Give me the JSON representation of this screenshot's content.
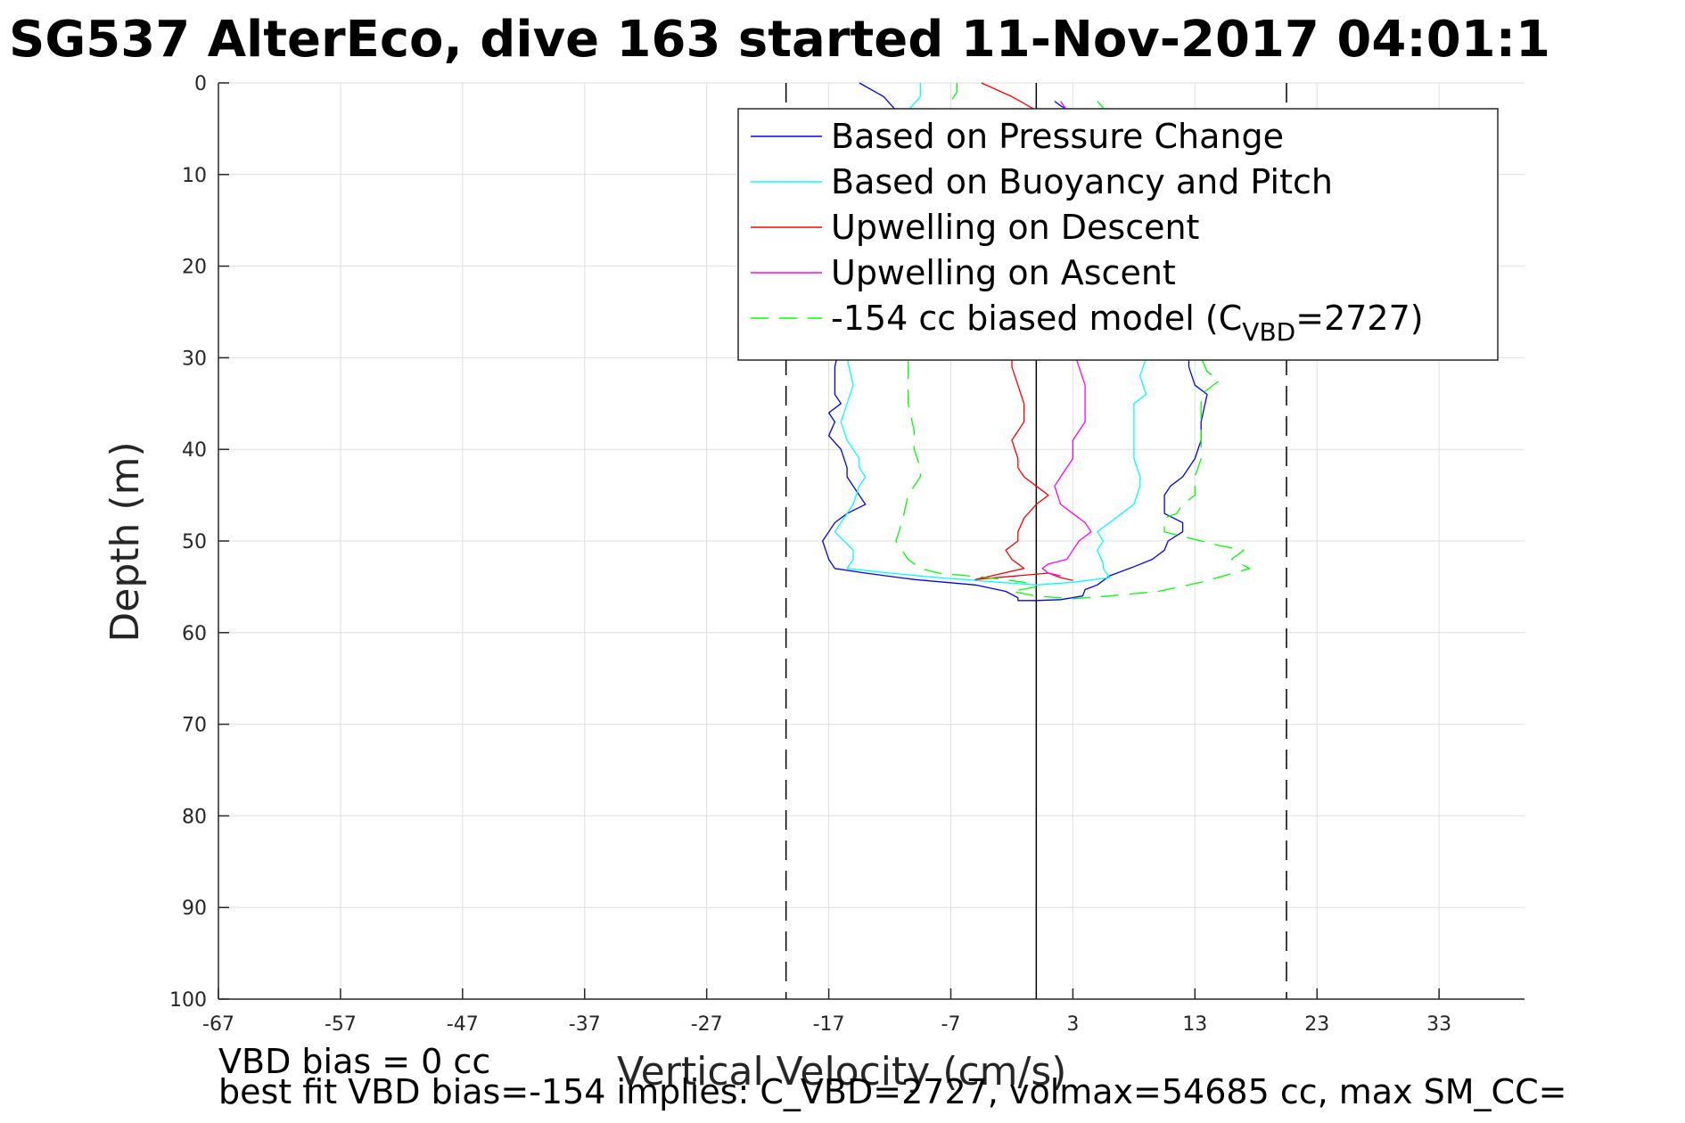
{
  "chart_data": {
    "type": "line",
    "title": "SG537 AlterEco, dive 163 started 11-Nov-2017 04:01:1",
    "xlabel": "Vertical Velocity (cm/s)",
    "ylabel": "Depth (m)",
    "xlim": [
      -67,
      40
    ],
    "ylim": [
      0,
      100
    ],
    "y_reversed": true,
    "grid": true,
    "legend_position": "top-right",
    "x_ticks": [
      "-67",
      "-57",
      "-47",
      "-37",
      "-27",
      "-17",
      "-7",
      "3",
      "13",
      "23",
      "33"
    ],
    "y_ticks": [
      "0",
      "10",
      "20",
      "30",
      "40",
      "50",
      "60",
      "70",
      "80",
      "90",
      "100"
    ],
    "reference_lines": [
      {
        "x": -20.5,
        "style": "dashed",
        "color": "#000000"
      },
      {
        "x": 0,
        "style": "solid",
        "color": "#000000"
      },
      {
        "x": 20.5,
        "style": "dashed",
        "color": "#000000"
      }
    ],
    "legend": [
      {
        "label": "Based on Pressure Change",
        "color": "#0000ff",
        "dash": "solid"
      },
      {
        "label": "Based on Buoyancy and Pitch",
        "color": "#00ffff",
        "dash": "solid"
      },
      {
        "label": "Upwelling on Descent",
        "color": "#ff0000",
        "dash": "solid"
      },
      {
        "label": "Upwelling on Ascent",
        "color": "#ff00ff",
        "dash": "solid"
      },
      {
        "label": "-154 cc biased model (C",
        "sub": "VBD",
        "tail": "=2727)",
        "color": "#00ff00",
        "dash": "dashed"
      }
    ],
    "series": [
      {
        "color": "#0000ff",
        "dash": "solid",
        "points": [
          [
            -14.5,
            0
          ],
          [
            -12.5,
            1.5
          ],
          [
            -11.5,
            3
          ],
          [
            -11,
            5
          ],
          [
            -11,
            12
          ],
          [
            -12.5,
            14
          ],
          [
            -14.5,
            16
          ],
          [
            -15,
            20
          ],
          [
            -15,
            24
          ],
          [
            -16,
            28
          ],
          [
            -16.5,
            31
          ],
          [
            -16.5,
            34
          ],
          [
            -16,
            35
          ],
          [
            -17,
            36
          ],
          [
            -16.5,
            37
          ],
          [
            -17,
            38.5
          ],
          [
            -16,
            40
          ],
          [
            -15.5,
            42
          ],
          [
            -15.5,
            43
          ],
          [
            -14.5,
            45
          ],
          [
            -14,
            46
          ],
          [
            -15.5,
            47
          ],
          [
            -16.5,
            48
          ],
          [
            -17,
            49
          ],
          [
            -17.5,
            50
          ],
          [
            -17,
            52
          ],
          [
            -16.5,
            53
          ],
          [
            -14,
            53.5
          ],
          [
            -10,
            54.2
          ],
          [
            -5,
            54.8
          ],
          [
            -2.5,
            55.5
          ],
          [
            -1.5,
            56.2
          ],
          [
            -1.5,
            56.5
          ],
          [
            0,
            56.5
          ],
          [
            2,
            56.4
          ],
          [
            3.8,
            56
          ],
          [
            4,
            55.3
          ],
          [
            5,
            54.8
          ],
          [
            6,
            53.8
          ],
          [
            8,
            52.8
          ],
          [
            9.5,
            52
          ],
          [
            10.5,
            51
          ],
          [
            10.8,
            50
          ],
          [
            12,
            49
          ],
          [
            12,
            48
          ],
          [
            10.5,
            47
          ],
          [
            10.5,
            45
          ],
          [
            11,
            44
          ],
          [
            12,
            43
          ],
          [
            13,
            41
          ],
          [
            13.5,
            39
          ],
          [
            13.5,
            37
          ],
          [
            14,
            34
          ],
          [
            13,
            33
          ],
          [
            12.5,
            31
          ],
          [
            12.5,
            28
          ],
          [
            12,
            24
          ],
          [
            11.5,
            20
          ],
          [
            10,
            15
          ],
          [
            8,
            11
          ],
          [
            7,
            8
          ],
          [
            4,
            4
          ],
          [
            2,
            2.5
          ],
          [
            1.5,
            2
          ]
        ]
      },
      {
        "color": "#00ffff",
        "dash": "solid",
        "points": [
          [
            -9.5,
            0
          ],
          [
            -9.5,
            1.5
          ],
          [
            -10.5,
            3
          ],
          [
            -11,
            6
          ],
          [
            -11.5,
            10
          ],
          [
            -13,
            13
          ],
          [
            -15,
            20
          ],
          [
            -15,
            25
          ],
          [
            -15.5,
            30
          ],
          [
            -15,
            33
          ],
          [
            -15.5,
            35
          ],
          [
            -16,
            37
          ],
          [
            -15.5,
            39
          ],
          [
            -14.5,
            41
          ],
          [
            -14.5,
            42
          ],
          [
            -14,
            43
          ],
          [
            -14.5,
            44
          ],
          [
            -15,
            46
          ],
          [
            -16,
            48
          ],
          [
            -16.5,
            49
          ],
          [
            -15,
            51
          ],
          [
            -15,
            52
          ],
          [
            -15.5,
            53
          ],
          [
            -12,
            53.5
          ],
          [
            -8,
            54
          ],
          [
            -3,
            54.5
          ],
          [
            0,
            54.8
          ],
          [
            3,
            54.5
          ],
          [
            6,
            54
          ],
          [
            5.5,
            53
          ],
          [
            5.5,
            52.5
          ],
          [
            5,
            51
          ],
          [
            5.5,
            50
          ],
          [
            5,
            49
          ],
          [
            6,
            48
          ],
          [
            7,
            47
          ],
          [
            8,
            46
          ],
          [
            8.5,
            44
          ],
          [
            8.5,
            43
          ],
          [
            8,
            41
          ],
          [
            8,
            37
          ],
          [
            8,
            35
          ],
          [
            9,
            34
          ],
          [
            8.5,
            32
          ],
          [
            9,
            30
          ],
          [
            8,
            26
          ],
          [
            7,
            20
          ],
          [
            6,
            15
          ],
          [
            5,
            10
          ],
          [
            4,
            6
          ],
          [
            3.5,
            3
          ]
        ]
      },
      {
        "color": "#ff0000",
        "dash": "solid",
        "points": [
          [
            -4.5,
            0
          ],
          [
            -2,
            1.5
          ],
          [
            0,
            3
          ],
          [
            -1,
            8
          ],
          [
            -1.5,
            15
          ],
          [
            -1.5,
            20
          ],
          [
            -1.5,
            25
          ],
          [
            -2,
            28
          ],
          [
            -2,
            31
          ],
          [
            -1.5,
            33
          ],
          [
            -1,
            35
          ],
          [
            -1,
            37
          ],
          [
            -1.5,
            38
          ],
          [
            -2,
            39
          ],
          [
            -1.5,
            41
          ],
          [
            -1.5,
            42
          ],
          [
            -1,
            43
          ],
          [
            0,
            44
          ],
          [
            1,
            45
          ],
          [
            0,
            46
          ],
          [
            -1,
            47.5
          ],
          [
            -1.5,
            49
          ],
          [
            -1.5,
            50
          ],
          [
            -2.5,
            51
          ],
          [
            -2,
            52
          ],
          [
            -1,
            53
          ],
          [
            -5,
            54.2
          ],
          [
            1,
            53.5
          ],
          [
            2,
            54
          ],
          [
            3,
            54.3
          ]
        ]
      },
      {
        "color": "#ff00ff",
        "dash": "solid",
        "points": [
          [
            2,
            2
          ],
          [
            3,
            4
          ],
          [
            4,
            6
          ],
          [
            4,
            10
          ],
          [
            4,
            15
          ],
          [
            3,
            20
          ],
          [
            3,
            25
          ],
          [
            3,
            29
          ],
          [
            3.5,
            31
          ],
          [
            4,
            33
          ],
          [
            4,
            35
          ],
          [
            4,
            37
          ],
          [
            3,
            39
          ],
          [
            3,
            41
          ],
          [
            2,
            43
          ],
          [
            1.5,
            44
          ],
          [
            2,
            46
          ],
          [
            3,
            47
          ],
          [
            4,
            48
          ],
          [
            4.5,
            49
          ],
          [
            3.5,
            50
          ],
          [
            3,
            51
          ],
          [
            2.5,
            52
          ],
          [
            1,
            52.5
          ],
          [
            0.5,
            53
          ],
          [
            1,
            53.5
          ],
          [
            2,
            53.8
          ]
        ]
      },
      {
        "color": "#00ff00",
        "dash": "dashed",
        "points": [
          [
            -6.5,
            0
          ],
          [
            -6.5,
            1
          ],
          [
            -7,
            2
          ],
          [
            -7,
            5
          ],
          [
            -8,
            10
          ],
          [
            -9,
            15
          ],
          [
            -10,
            20
          ],
          [
            -10.5,
            25
          ],
          [
            -10.5,
            31
          ],
          [
            -10.5,
            35
          ],
          [
            -10,
            38
          ],
          [
            -10,
            40
          ],
          [
            -9.5,
            42
          ],
          [
            -9.5,
            43
          ],
          [
            -10.5,
            45
          ],
          [
            -11,
            48
          ],
          [
            -11.5,
            50
          ],
          [
            -10.5,
            52
          ],
          [
            -9.5,
            53
          ],
          [
            -8,
            53.5
          ],
          [
            -4,
            54
          ],
          [
            -1,
            54.5
          ],
          [
            0,
            55
          ],
          [
            -2,
            55.5
          ],
          [
            0,
            56
          ],
          [
            3,
            56.3
          ],
          [
            6,
            56
          ],
          [
            10,
            55.5
          ],
          [
            13.5,
            54.5
          ],
          [
            17.5,
            53
          ],
          [
            16,
            52
          ],
          [
            17,
            51
          ],
          [
            15,
            50.5
          ],
          [
            12,
            49.5
          ],
          [
            10.5,
            49
          ],
          [
            10.5,
            48
          ],
          [
            10.5,
            47.5
          ],
          [
            11.5,
            47
          ],
          [
            12,
            46
          ],
          [
            13,
            45
          ],
          [
            13,
            43
          ],
          [
            13.5,
            41
          ],
          [
            13.5,
            38
          ],
          [
            13.5,
            34.5
          ],
          [
            13.5,
            34
          ],
          [
            14,
            33.5
          ],
          [
            15,
            32.5
          ],
          [
            14,
            31.5
          ],
          [
            13.5,
            30
          ],
          [
            13,
            25
          ],
          [
            12,
            20
          ],
          [
            11,
            15
          ],
          [
            9,
            10
          ],
          [
            7,
            5
          ],
          [
            5,
            2
          ]
        ]
      }
    ]
  },
  "notes": {
    "line1": "VBD bias = 0 cc",
    "line2": "best fit VBD bias=-154 implies: C_VBD=2727, volmax=54685 cc, max SM_CC="
  }
}
